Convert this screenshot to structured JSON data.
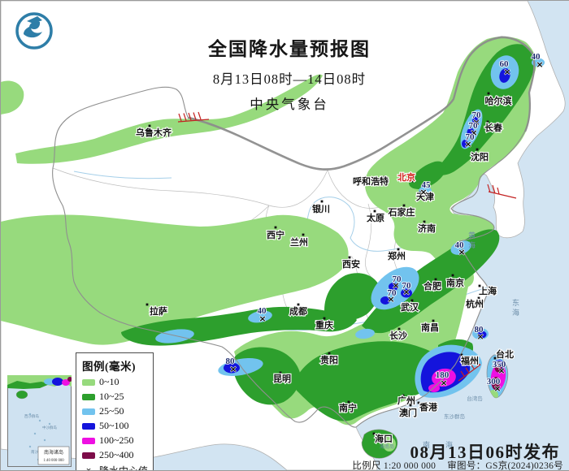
{
  "header": {
    "title": "全国降水量预报图",
    "period": "8月13日08时—14日08时",
    "agency": "中央气象台"
  },
  "legend": {
    "title": "图例(毫米)",
    "items": [
      {
        "label": "0~10",
        "color": "#97da7d"
      },
      {
        "label": "10~25",
        "color": "#2d9f2d"
      },
      {
        "label": "25~50",
        "color": "#72c3ee"
      },
      {
        "label": "50~100",
        "color": "#1414dc"
      },
      {
        "label": "100~250",
        "color": "#ee10e2"
      },
      {
        "label": "250~400",
        "color": "#7d0c49"
      }
    ],
    "center_symbol": "×",
    "center_label": "降水中心值"
  },
  "footer": {
    "issued": "08月13日06时发布",
    "scale": "比例尺 1:20 000 000",
    "approval": "审图号：GS京(2024)0236号"
  },
  "inset": {
    "title": "南海诸岛",
    "scale": "1:40 000 000",
    "labels": [
      {
        "t": "西沙群岛",
        "p": [
          30,
          52
        ]
      },
      {
        "t": "中沙群岛",
        "p": [
          52,
          66
        ]
      },
      {
        "t": "南沙群岛",
        "p": [
          38,
          96
        ]
      }
    ]
  },
  "map": {
    "colors": {
      "sea": "#d2e4f2",
      "land": "#ffffff",
      "rain_0_10": "#97da7d",
      "rain_10_25": "#2d9f2d",
      "rain_25_50": "#72c3ee",
      "rain_50_100": "#1414dc",
      "rain_100_250": "#ee10e2",
      "rain_250_400": "#7d0c49",
      "border": "#8f8f8f",
      "river": "#a5cfe9",
      "hatch": "#c32222"
    },
    "cities": [
      {
        "n": "乌鲁木齐",
        "d": [
          183,
          154
        ],
        "l": [
          188,
          162
        ]
      },
      {
        "n": "哈尔滨",
        "d": [
          600,
          114
        ],
        "l": [
          612,
          123
        ]
      },
      {
        "n": "长春",
        "d": [
          599,
          149
        ],
        "l": [
          606,
          156
        ]
      },
      {
        "n": "沈阳",
        "d": [
          586,
          183
        ],
        "l": [
          589,
          192
        ]
      },
      {
        "n": "北京",
        "d": [
          507,
          222
        ],
        "l": [
          499,
          217
        ],
        "cap": true
      },
      {
        "n": "天津",
        "d": [
          516,
          236
        ],
        "l": [
          522,
          241
        ]
      },
      {
        "n": "呼和浩特",
        "d": [
          472,
          217
        ],
        "l": [
          455,
          222
        ]
      },
      {
        "n": "银川",
        "d": [
          395,
          247
        ],
        "l": [
          394,
          256
        ]
      },
      {
        "n": "太原",
        "d": [
          460,
          259
        ],
        "l": [
          461,
          267
        ]
      },
      {
        "n": "石家庄",
        "d": [
          496,
          252
        ],
        "l": [
          493,
          260
        ]
      },
      {
        "n": "济南",
        "d": [
          521,
          272
        ],
        "l": [
          524,
          280
        ]
      },
      {
        "n": "西宁",
        "d": [
          338,
          279
        ],
        "l": [
          338,
          288
        ]
      },
      {
        "n": "兰州",
        "d": [
          372,
          288
        ],
        "l": [
          367,
          297
        ]
      },
      {
        "n": "西安",
        "d": [
          429,
          316
        ],
        "l": [
          431,
          324
        ]
      },
      {
        "n": "郑州",
        "d": [
          489,
          306
        ],
        "l": [
          487,
          314
        ]
      },
      {
        "n": "合肥",
        "d": [
          535,
          343
        ],
        "l": [
          531,
          351
        ]
      },
      {
        "n": "南京",
        "d": [
          556,
          338
        ],
        "l": [
          559,
          347
        ]
      },
      {
        "n": "上海",
        "d": [
          589,
          351
        ],
        "l": [
          599,
          357
        ]
      },
      {
        "n": "武汉",
        "d": [
          506,
          369
        ],
        "l": [
          503,
          377
        ]
      },
      {
        "n": "杭州",
        "d": [
          588,
          366
        ],
        "l": [
          583,
          373
        ]
      },
      {
        "n": "拉萨",
        "d": [
          180,
          374
        ],
        "l": [
          194,
          382
        ]
      },
      {
        "n": "成都",
        "d": [
          366,
          374
        ],
        "l": [
          366,
          382
        ]
      },
      {
        "n": "重庆",
        "d": [
          398,
          391
        ],
        "l": [
          398,
          399
        ]
      },
      {
        "n": "长沙",
        "d": [
          490,
          404
        ],
        "l": [
          489,
          412
        ]
      },
      {
        "n": "南昌",
        "d": [
          532,
          394
        ],
        "l": [
          528,
          402
        ]
      },
      {
        "n": "贵阳",
        "d": [
          404,
          434
        ],
        "l": [
          404,
          442
        ]
      },
      {
        "n": "昆明",
        "d": [
          344,
          458
        ],
        "l": [
          346,
          465
        ]
      },
      {
        "n": "南宁",
        "d": [
          428,
          494
        ],
        "l": [
          427,
          501
        ]
      },
      {
        "n": "广州",
        "d": [
          495,
          486
        ],
        "l": [
          499,
          492
        ]
      },
      {
        "n": "澳门",
        "d": [
          504,
          498
        ],
        "l": [
          501,
          507
        ]
      },
      {
        "n": "香港",
        "d": [
          514,
          495
        ],
        "l": [
          526,
          500
        ]
      },
      {
        "n": "福州",
        "d": [
          567,
          436
        ],
        "l": [
          577,
          443
        ]
      },
      {
        "n": "台北",
        "d": [
          608,
          440
        ],
        "l": [
          620,
          435
        ]
      },
      {
        "n": "海口",
        "d": [
          459,
          533
        ],
        "l": [
          471,
          539
        ]
      }
    ],
    "centers": [
      {
        "v": "40",
        "vp": [
          658,
          68
        ],
        "xp": [
          663,
          78
        ]
      },
      {
        "v": "60",
        "vp": [
          619,
          77
        ],
        "xp": [
          623,
          87
        ]
      },
      {
        "v": "70",
        "vp": [
          585,
          140
        ],
        "xp": [
          585,
          149
        ]
      },
      {
        "v": "70",
        "vp": [
          581,
          153
        ],
        "xp": [
          582,
          162
        ]
      },
      {
        "v": "70",
        "vp": [
          577,
          167
        ],
        "xp": [
          575,
          176
        ]
      },
      {
        "v": "45",
        "vp": [
          523,
          226
        ],
        "xp": [
          520,
          235
        ]
      },
      {
        "v": "40",
        "vp": [
          564,
          300
        ],
        "xp": [
          567,
          309
        ]
      },
      {
        "v": "40",
        "vp": [
          321,
          381
        ],
        "xp": [
          322,
          391
        ]
      },
      {
        "v": "70",
        "vp": [
          487,
          342
        ],
        "xp": [
          486,
          350
        ]
      },
      {
        "v": "70",
        "vp": [
          499,
          350
        ],
        "xp": [
          499,
          358
        ]
      },
      {
        "v": "70",
        "vp": [
          481,
          359
        ],
        "xp": [
          480,
          367
        ]
      },
      {
        "v": "80",
        "vp": [
          588,
          404
        ],
        "xp": [
          590,
          413
        ]
      },
      {
        "v": "80",
        "vp": [
          282,
          443
        ],
        "xp": [
          286,
          453
        ]
      },
      {
        "v": "180",
        "vp": [
          543,
          460
        ],
        "xp": [
          545,
          470
        ]
      },
      {
        "v": "350",
        "vp": [
          613,
          447
        ],
        "xp": [
          616,
          455
        ]
      },
      {
        "v": "300",
        "vp": [
          606,
          468
        ],
        "xp": [
          611,
          477
        ]
      }
    ],
    "sea_labels": [
      {
        "t": "黄",
        "p": [
          580,
          289
        ],
        "s": 9
      },
      {
        "t": "海",
        "p": [
          580,
          301
        ],
        "s": 9
      },
      {
        "t": "东",
        "p": [
          634,
          372
        ],
        "s": 9
      },
      {
        "t": "海",
        "p": [
          634,
          384
        ],
        "s": 9
      },
      {
        "t": "南",
        "p": [
          524,
          547
        ],
        "s": 9
      },
      {
        "t": "海",
        "p": [
          552,
          547
        ],
        "s": 9
      }
    ],
    "tiny_labels": [
      {
        "t": "台湾岛",
        "p": [
          583,
          490
        ],
        "s": 6.5
      },
      {
        "t": "东沙群岛",
        "p": [
          558,
          512
        ],
        "s": 6.5
      },
      {
        "t": "海南岛",
        "p": [
          475,
          549
        ],
        "s": 6
      }
    ]
  }
}
